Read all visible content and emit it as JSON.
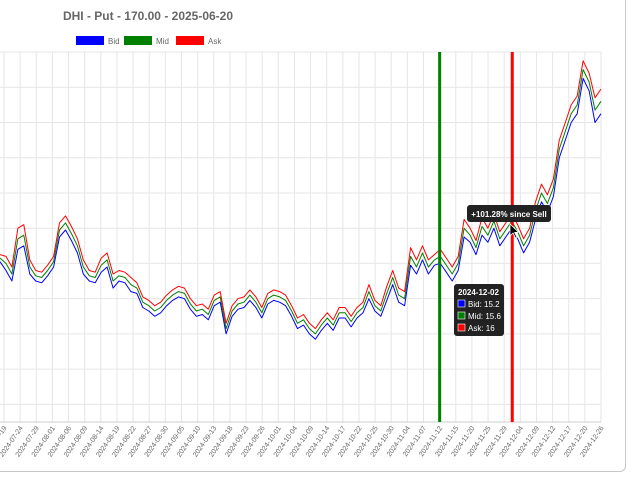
{
  "chart_data": {
    "type": "line",
    "title": "DHI - Put - 170.00 - 2025-06-20",
    "legend": {
      "placement": "top-center"
    },
    "grid": true,
    "colors": {
      "bid": "#0000ff",
      "mid": "#008000",
      "ask": "#ff0000"
    },
    "tick_labels": [
      "2024-07-19",
      "2024-07-24",
      "2024-07-29",
      "2024-08-01",
      "2024-08-06",
      "2024-08-09",
      "2024-08-14",
      "2024-08-19",
      "2024-08-22",
      "2024-08-27",
      "2024-08-30",
      "2024-09-05",
      "2024-09-10",
      "2024-09-13",
      "2024-09-18",
      "2024-09-23",
      "2024-09-26",
      "2024-10-01",
      "2024-10-04",
      "2024-10-09",
      "2024-10-14",
      "2024-10-17",
      "2024-10-22",
      "2024-10-25",
      "2024-10-30",
      "2024-11-04",
      "2024-11-07",
      "2024-11-12",
      "2024-11-15",
      "2024-11-20",
      "2024-11-25",
      "2024-11-29",
      "2024-12-04",
      "2024-12-09",
      "2024-12-12",
      "2024-12-17",
      "2024-12-20",
      "2024-12-26"
    ],
    "ylim": [
      5,
      26
    ],
    "series": [
      {
        "name": "Bid",
        "key": "bid",
        "values": [
          14.1,
          13.6,
          13.0,
          14.8,
          15.0,
          13.4,
          13.0,
          12.9,
          13.3,
          13.8,
          15.5,
          15.9,
          15.3,
          14.6,
          13.4,
          13.0,
          12.9,
          13.5,
          13.8,
          12.6,
          13.0,
          12.9,
          12.4,
          12.3,
          11.5,
          11.3,
          11.0,
          11.2,
          11.6,
          11.9,
          12.1,
          12.0,
          11.4,
          11.0,
          11.1,
          10.8,
          11.6,
          11.8,
          10.0,
          11.0,
          11.4,
          11.5,
          11.9,
          11.5,
          10.9,
          11.7,
          11.9,
          11.8,
          11.6,
          11.0,
          10.3,
          10.5,
          10.0,
          9.7,
          10.2,
          10.6,
          10.2,
          10.9,
          10.9,
          10.4,
          10.9,
          11.2,
          12.0,
          11.3,
          11.0,
          11.9,
          12.8,
          11.8,
          11.6,
          13.9,
          13.4,
          14.2,
          13.4,
          13.9,
          14.0,
          13.5,
          13.0,
          13.6,
          15.5,
          15.2,
          14.5,
          15.6,
          15.2,
          16.0,
          15.0,
          15.5,
          16.0,
          15.4,
          14.6,
          15.2,
          16.5,
          17.5,
          16.9,
          17.8,
          20.0,
          21.0,
          22.0,
          22.5,
          24.5,
          23.8,
          22.0,
          22.5
        ],
        "role": "bid"
      },
      {
        "name": "Mid",
        "key": "mid",
        "values": [
          14.3,
          14.0,
          13.4,
          15.4,
          15.6,
          13.8,
          13.3,
          13.2,
          13.6,
          14.1,
          15.9,
          16.3,
          15.7,
          15.0,
          13.8,
          13.3,
          13.2,
          13.9,
          14.2,
          13.0,
          13.3,
          13.2,
          12.8,
          12.6,
          11.8,
          11.6,
          11.3,
          11.5,
          11.9,
          12.2,
          12.4,
          12.3,
          11.7,
          11.3,
          11.4,
          11.1,
          11.9,
          12.1,
          10.3,
          11.3,
          11.7,
          11.8,
          12.2,
          11.8,
          11.2,
          12.0,
          12.2,
          12.1,
          11.9,
          11.3,
          10.6,
          10.8,
          10.3,
          10.0,
          10.5,
          10.9,
          10.5,
          11.2,
          11.2,
          10.7,
          11.2,
          11.5,
          12.4,
          11.6,
          11.3,
          12.3,
          13.2,
          12.2,
          12.0,
          14.4,
          13.8,
          14.6,
          13.8,
          14.2,
          14.4,
          13.9,
          13.4,
          14.0,
          16.0,
          15.6,
          14.9,
          16.1,
          15.6,
          16.4,
          15.4,
          15.9,
          16.4,
          15.8,
          15.0,
          15.6,
          17.0,
          18.0,
          17.4,
          18.3,
          20.5,
          21.5,
          22.5,
          23.0,
          25.0,
          24.3,
          22.7,
          23.2
        ],
        "role": "mid"
      },
      {
        "name": "Ask",
        "key": "ask",
        "values": [
          14.5,
          14.4,
          13.8,
          16.0,
          16.2,
          14.2,
          13.6,
          13.5,
          13.9,
          14.4,
          16.3,
          16.7,
          16.1,
          15.4,
          14.2,
          13.6,
          13.5,
          14.3,
          14.6,
          13.4,
          13.6,
          13.5,
          13.2,
          12.9,
          12.1,
          11.9,
          11.6,
          11.8,
          12.2,
          12.5,
          12.7,
          12.6,
          12.0,
          11.6,
          11.7,
          11.4,
          12.2,
          12.4,
          10.6,
          11.6,
          12.0,
          12.1,
          12.5,
          12.1,
          11.5,
          12.3,
          12.5,
          12.4,
          12.2,
          11.6,
          10.9,
          11.1,
          10.6,
          10.3,
          10.8,
          11.2,
          10.8,
          11.5,
          11.5,
          11.0,
          11.5,
          11.8,
          12.8,
          11.9,
          11.6,
          12.7,
          13.6,
          12.6,
          12.4,
          14.9,
          14.2,
          15.0,
          14.2,
          14.5,
          14.8,
          14.3,
          13.8,
          14.4,
          16.5,
          16.0,
          15.3,
          16.6,
          16.0,
          16.8,
          15.8,
          16.3,
          16.8,
          16.2,
          15.4,
          16.0,
          17.5,
          18.5,
          17.9,
          18.8,
          21.0,
          22.0,
          23.0,
          23.5,
          25.5,
          24.8,
          23.4,
          23.9
        ],
        "role": "ask"
      }
    ],
    "buy_marker_date": "2024-11-12",
    "sell_marker_date": "2024-12-02",
    "annotation": "+101.28% since Sell",
    "tooltip": {
      "date": "2024-12-02",
      "bid_label": "Bid: 15.2",
      "mid_label": "Mid: 15.6",
      "ask_label": "Ask: 16"
    }
  }
}
